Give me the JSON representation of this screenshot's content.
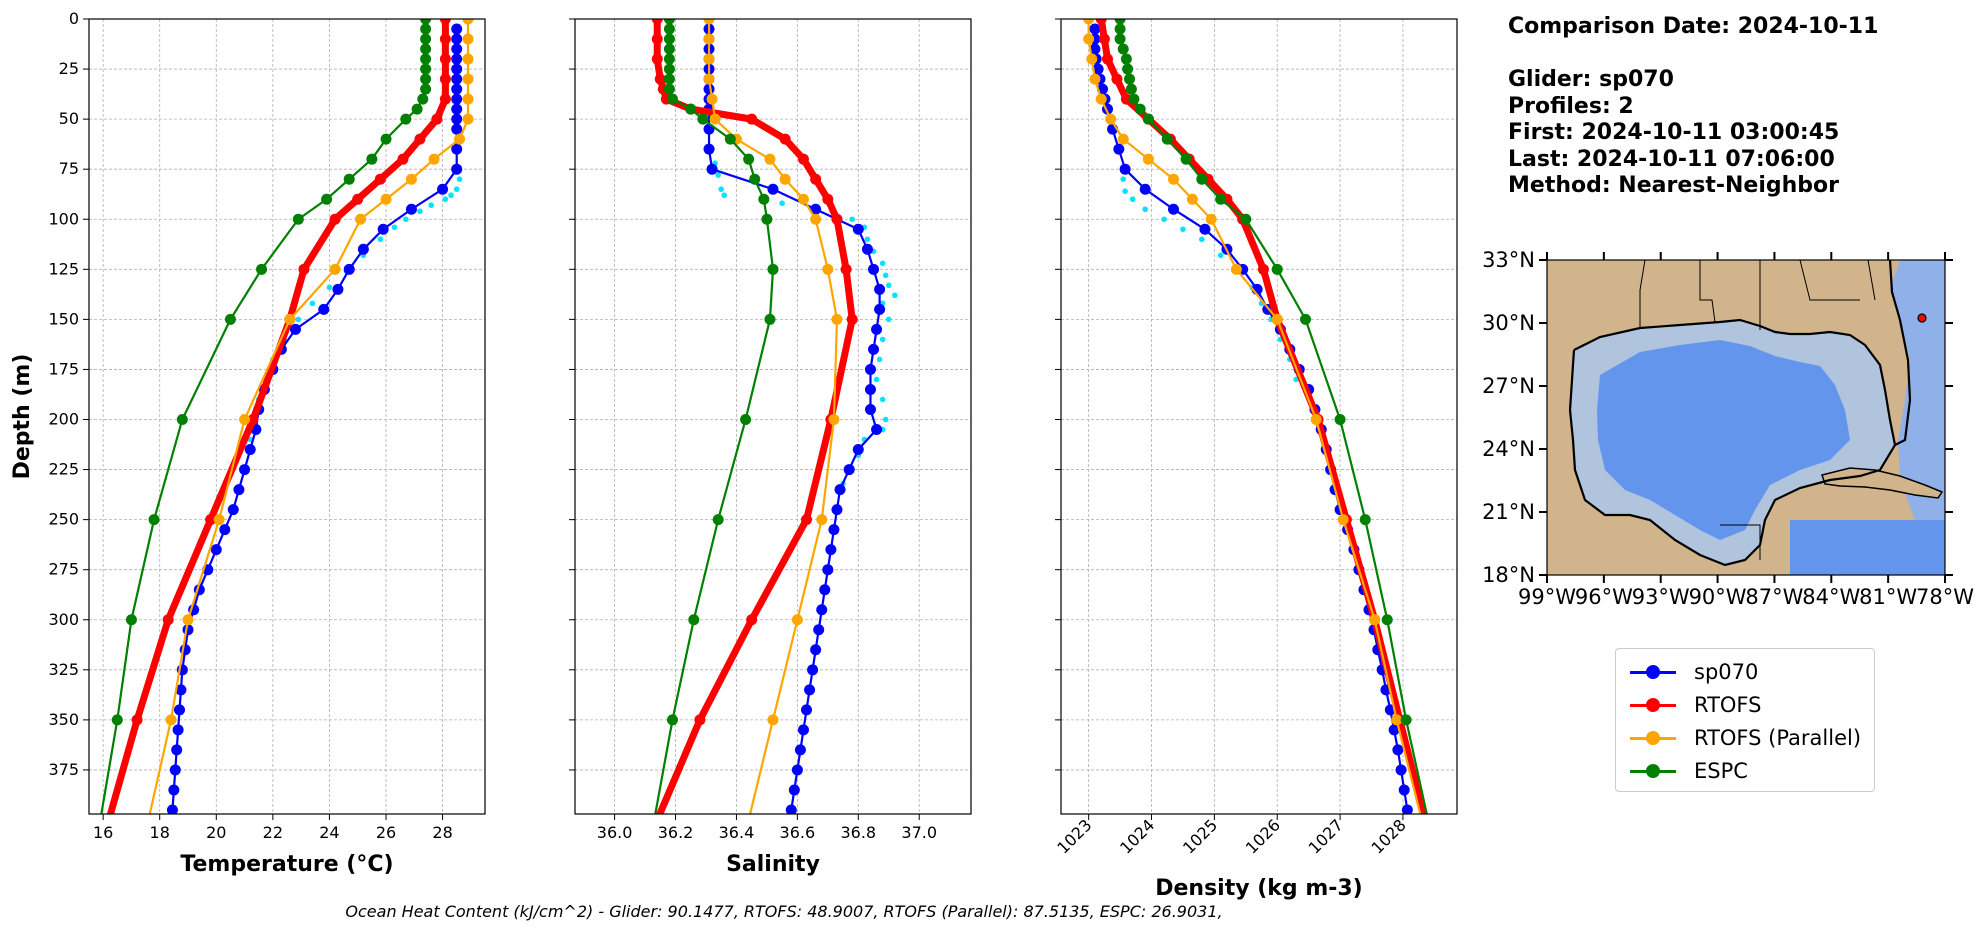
{
  "info": {
    "comparison_date": "Comparison Date: 2024-10-11",
    "glider": "Glider: sp070",
    "profiles": "Profiles: 2",
    "first": "First: 2024-10-11 03:00:45",
    "last": "Last: 2024-10-11 07:06:00",
    "method": "Method: Nearest-Neighbor"
  },
  "footer": "Ocean Heat Content (kJ/cm^2) - Glider: 90.1477,  RTOFS: 48.9007,  RTOFS (Parallel): 87.5135,  ESPC: 26.9031,",
  "legend": [
    {
      "name": "sp070",
      "color": "#0000ff"
    },
    {
      "name": "RTOFS",
      "color": "#ff0000"
    },
    {
      "name": "RTOFS (Parallel)",
      "color": "#ffa500"
    },
    {
      "name": "ESPC",
      "color": "#008000"
    }
  ],
  "chart_data": [
    {
      "type": "line",
      "xlabel": "Temperature (°C)",
      "ylabel": "Depth (m)",
      "xlim": [
        15.5,
        29.5
      ],
      "ylim": [
        397,
        0
      ],
      "xticks": [
        16,
        18,
        20,
        22,
        24,
        26,
        28
      ],
      "yticks": [
        0,
        25,
        50,
        75,
        100,
        125,
        150,
        175,
        200,
        225,
        250,
        275,
        300,
        325,
        350,
        375
      ],
      "grid": true,
      "series": [
        {
          "name": "sp070 (raw)",
          "color": "#00e5ff",
          "style": "dots",
          "depth": [
            80,
            85,
            88,
            90,
            93,
            96,
            100,
            104,
            110,
            118,
            126,
            134,
            142,
            150,
            160,
            170,
            180,
            190,
            200,
            210
          ],
          "values": [
            28.6,
            28.5,
            28.3,
            28.1,
            27.6,
            27.2,
            26.7,
            26.3,
            25.8,
            25.2,
            24.6,
            24.0,
            23.4,
            22.9,
            22.4,
            22.0,
            21.7,
            21.5,
            21.3,
            21.2
          ]
        },
        {
          "name": "sp070",
          "color": "#0000ff",
          "depth": [
            5,
            10,
            15,
            20,
            25,
            30,
            35,
            40,
            45,
            50,
            55,
            65,
            75,
            85,
            95,
            105,
            115,
            125,
            135,
            145,
            155,
            165,
            175,
            185,
            195,
            205,
            215,
            225,
            235,
            245,
            255,
            265,
            275,
            285,
            295,
            305,
            315,
            325,
            335,
            345,
            355,
            365,
            375,
            385,
            395
          ],
          "values": [
            28.5,
            28.5,
            28.5,
            28.5,
            28.5,
            28.5,
            28.5,
            28.5,
            28.5,
            28.5,
            28.5,
            28.5,
            28.5,
            28.0,
            26.9,
            25.9,
            25.2,
            24.7,
            24.3,
            23.8,
            22.8,
            22.3,
            22.0,
            21.7,
            21.5,
            21.4,
            21.2,
            21.0,
            20.8,
            20.6,
            20.3,
            20.0,
            19.7,
            19.4,
            19.2,
            19.0,
            18.9,
            18.8,
            18.75,
            18.7,
            18.65,
            18.6,
            18.55,
            18.5,
            18.45
          ]
        },
        {
          "name": "RTOFS",
          "color": "#ff0000",
          "width": 7,
          "depth": [
            0,
            10,
            20,
            30,
            40,
            50,
            60,
            70,
            80,
            90,
            100,
            125,
            150,
            200,
            250,
            300,
            350,
            400
          ],
          "values": [
            28.1,
            28.1,
            28.1,
            28.1,
            28.1,
            27.8,
            27.2,
            26.6,
            25.8,
            25.0,
            24.2,
            23.1,
            22.6,
            21.3,
            19.8,
            18.3,
            17.2,
            16.2
          ]
        },
        {
          "name": "RTOFS (Parallel)",
          "color": "#ffa500",
          "depth": [
            0,
            10,
            20,
            30,
            40,
            50,
            60,
            70,
            80,
            90,
            100,
            125,
            150,
            200,
            250,
            300,
            350,
            400
          ],
          "values": [
            28.9,
            28.9,
            28.9,
            28.9,
            28.9,
            28.9,
            28.6,
            27.7,
            26.9,
            26.0,
            25.1,
            24.2,
            22.6,
            21.0,
            20.1,
            19.0,
            18.4,
            17.6
          ]
        },
        {
          "name": "ESPC",
          "color": "#008000",
          "depth": [
            0,
            5,
            10,
            15,
            20,
            25,
            30,
            35,
            40,
            45,
            50,
            60,
            70,
            80,
            90,
            100,
            125,
            150,
            200,
            250,
            300,
            350,
            400
          ],
          "values": [
            27.4,
            27.4,
            27.4,
            27.4,
            27.4,
            27.4,
            27.4,
            27.4,
            27.3,
            27.1,
            26.7,
            26.0,
            25.5,
            24.7,
            23.9,
            22.9,
            21.6,
            20.5,
            18.8,
            17.8,
            17.0,
            16.5,
            15.9
          ]
        }
      ]
    },
    {
      "type": "line",
      "xlabel": "Salinity",
      "xlim": [
        35.87,
        37.17
      ],
      "ylim": [
        397,
        0
      ],
      "xticks": [
        36.0,
        36.2,
        36.4,
        36.6,
        36.8,
        37.0
      ],
      "xticklabels": [
        "36.0",
        "36.2",
        "36.4",
        "36.6",
        "36.8",
        "37.0"
      ],
      "grid": true,
      "series": [
        {
          "name": "sp070 (raw)",
          "color": "#00e5ff",
          "style": "dots",
          "depth": [
            65,
            72,
            78,
            85,
            88,
            92,
            96,
            100,
            104,
            110,
            116,
            122,
            128,
            133,
            138,
            142,
            150,
            160,
            170,
            180,
            190,
            200,
            205,
            210,
            218,
            225,
            232
          ],
          "values": [
            36.32,
            36.33,
            36.34,
            36.35,
            36.36,
            36.55,
            36.65,
            36.78,
            36.82,
            36.83,
            36.85,
            36.88,
            36.89,
            36.9,
            36.92,
            36.88,
            36.9,
            36.88,
            36.87,
            36.86,
            36.88,
            36.89,
            36.88,
            36.82,
            36.8,
            36.78,
            36.75
          ]
        },
        {
          "name": "sp070",
          "color": "#0000ff",
          "depth": [
            5,
            10,
            15,
            20,
            25,
            30,
            35,
            40,
            45,
            55,
            65,
            75,
            85,
            95,
            105,
            115,
            125,
            135,
            145,
            155,
            165,
            175,
            185,
            195,
            205,
            215,
            225,
            235,
            245,
            255,
            265,
            275,
            285,
            295,
            305,
            315,
            325,
            335,
            345,
            355,
            365,
            375,
            385,
            395
          ],
          "values": [
            36.31,
            36.31,
            36.31,
            36.31,
            36.31,
            36.31,
            36.31,
            36.31,
            36.31,
            36.31,
            36.31,
            36.32,
            36.52,
            36.66,
            36.8,
            36.83,
            36.85,
            36.87,
            36.87,
            36.86,
            36.85,
            36.84,
            36.84,
            36.84,
            36.86,
            36.8,
            36.77,
            36.74,
            36.73,
            36.72,
            36.71,
            36.7,
            36.69,
            36.68,
            36.67,
            36.66,
            36.65,
            36.64,
            36.63,
            36.62,
            36.61,
            36.6,
            36.59,
            36.58
          ]
        },
        {
          "name": "RTOFS",
          "color": "#ff0000",
          "width": 7,
          "depth": [
            0,
            10,
            20,
            30,
            35,
            40,
            45,
            50,
            60,
            70,
            80,
            90,
            100,
            125,
            150,
            200,
            250,
            300,
            350,
            400
          ],
          "values": [
            36.14,
            36.14,
            36.14,
            36.15,
            36.16,
            36.17,
            36.25,
            36.45,
            36.56,
            36.62,
            36.66,
            36.7,
            36.73,
            36.76,
            36.78,
            36.71,
            36.63,
            36.45,
            36.28,
            36.14
          ]
        },
        {
          "name": "RTOFS (Parallel)",
          "color": "#ffa500",
          "depth": [
            0,
            10,
            20,
            30,
            40,
            50,
            60,
            70,
            80,
            90,
            100,
            125,
            150,
            200,
            250,
            300,
            350,
            400
          ],
          "values": [
            36.31,
            36.31,
            36.31,
            36.31,
            36.32,
            36.33,
            36.4,
            36.51,
            36.56,
            36.62,
            36.66,
            36.7,
            36.73,
            36.72,
            36.68,
            36.6,
            36.52,
            36.44
          ]
        },
        {
          "name": "ESPC",
          "color": "#008000",
          "depth": [
            0,
            5,
            10,
            15,
            20,
            25,
            30,
            35,
            40,
            45,
            50,
            60,
            70,
            80,
            90,
            100,
            125,
            150,
            200,
            250,
            300,
            350,
            400
          ],
          "values": [
            36.18,
            36.18,
            36.18,
            36.18,
            36.18,
            36.18,
            36.18,
            36.18,
            36.19,
            36.25,
            36.29,
            36.38,
            36.44,
            36.46,
            36.49,
            36.5,
            36.52,
            36.51,
            36.43,
            36.34,
            36.26,
            36.19,
            36.13
          ]
        }
      ]
    },
    {
      "type": "line",
      "xlabel": "Density (kg m-3)",
      "xlim": [
        1022.56,
        1028.86
      ],
      "ylim": [
        397,
        0
      ],
      "xticks": [
        1023,
        1024,
        1025,
        1026,
        1027,
        1028
      ],
      "grid": true,
      "series": [
        {
          "name": "sp070 (raw)",
          "color": "#00e5ff",
          "style": "dots",
          "depth": [
            80,
            86,
            90,
            95,
            100,
            105,
            110,
            118,
            126,
            134,
            142,
            150,
            160,
            170,
            180
          ],
          "values": [
            1023.55,
            1023.58,
            1023.7,
            1023.9,
            1024.2,
            1024.5,
            1024.8,
            1025.1,
            1025.4,
            1025.6,
            1025.75,
            1025.9,
            1026.05,
            1026.2,
            1026.3
          ]
        },
        {
          "name": "sp070",
          "color": "#0000ff",
          "depth": [
            5,
            10,
            15,
            20,
            25,
            30,
            35,
            40,
            45,
            55,
            65,
            75,
            85,
            95,
            105,
            115,
            125,
            135,
            145,
            155,
            165,
            175,
            185,
            195,
            205,
            215,
            225,
            235,
            245,
            255,
            265,
            275,
            285,
            295,
            305,
            315,
            325,
            335,
            345,
            355,
            365,
            375,
            385,
            395
          ],
          "values": [
            1023.1,
            1023.1,
            1023.1,
            1023.12,
            1023.15,
            1023.18,
            1023.22,
            1023.26,
            1023.3,
            1023.38,
            1023.48,
            1023.58,
            1023.9,
            1024.35,
            1024.85,
            1025.2,
            1025.45,
            1025.68,
            1025.85,
            1026.05,
            1026.2,
            1026.35,
            1026.5,
            1026.6,
            1026.7,
            1026.78,
            1026.85,
            1026.92,
            1027.0,
            1027.12,
            1027.22,
            1027.3,
            1027.38,
            1027.46,
            1027.54,
            1027.6,
            1027.67,
            1027.73,
            1027.8,
            1027.86,
            1027.92,
            1027.97,
            1028.02,
            1028.07
          ]
        },
        {
          "name": "RTOFS",
          "color": "#ff0000",
          "width": 7,
          "depth": [
            0,
            10,
            20,
            30,
            40,
            50,
            60,
            70,
            80,
            90,
            100,
            125,
            150,
            200,
            250,
            300,
            350,
            400
          ],
          "values": [
            1023.2,
            1023.25,
            1023.3,
            1023.45,
            1023.6,
            1023.95,
            1024.3,
            1024.6,
            1024.9,
            1025.2,
            1025.45,
            1025.78,
            1026.0,
            1026.65,
            1027.1,
            1027.55,
            1027.95,
            1028.35
          ]
        },
        {
          "name": "RTOFS (Parallel)",
          "color": "#ffa500",
          "depth": [
            0,
            10,
            20,
            30,
            40,
            50,
            60,
            70,
            80,
            90,
            100,
            125,
            150,
            200,
            250,
            300,
            350,
            400
          ],
          "values": [
            1023.0,
            1023.0,
            1023.05,
            1023.1,
            1023.2,
            1023.35,
            1023.55,
            1023.95,
            1024.35,
            1024.65,
            1024.95,
            1025.35,
            1026.0,
            1026.62,
            1027.05,
            1027.55,
            1027.9,
            1028.3
          ]
        },
        {
          "name": "ESPC",
          "color": "#008000",
          "depth": [
            0,
            5,
            10,
            15,
            20,
            25,
            30,
            35,
            40,
            45,
            50,
            60,
            70,
            80,
            90,
            100,
            125,
            150,
            200,
            250,
            300,
            350,
            400
          ],
          "values": [
            1023.5,
            1023.5,
            1023.5,
            1023.55,
            1023.6,
            1023.62,
            1023.65,
            1023.68,
            1023.72,
            1023.82,
            1023.95,
            1024.25,
            1024.55,
            1024.8,
            1025.1,
            1025.5,
            1026.0,
            1026.45,
            1027.0,
            1027.4,
            1027.75,
            1028.05,
            1028.4
          ]
        }
      ]
    }
  ],
  "map": {
    "lat_ticks": [
      "33°N",
      "30°N",
      "27°N",
      "24°N",
      "21°N",
      "18°N"
    ],
    "lon_ticks": [
      "99°W",
      "96°W",
      "93°W",
      "90°W",
      "87°W",
      "84°W",
      "81°W",
      "78°W"
    ],
    "land_color": "#d2b48c",
    "shelf_color": "#b0c4de",
    "deep_color": "#6495ed",
    "glider_lon": -79.9,
    "glider_lat": 30.5
  }
}
